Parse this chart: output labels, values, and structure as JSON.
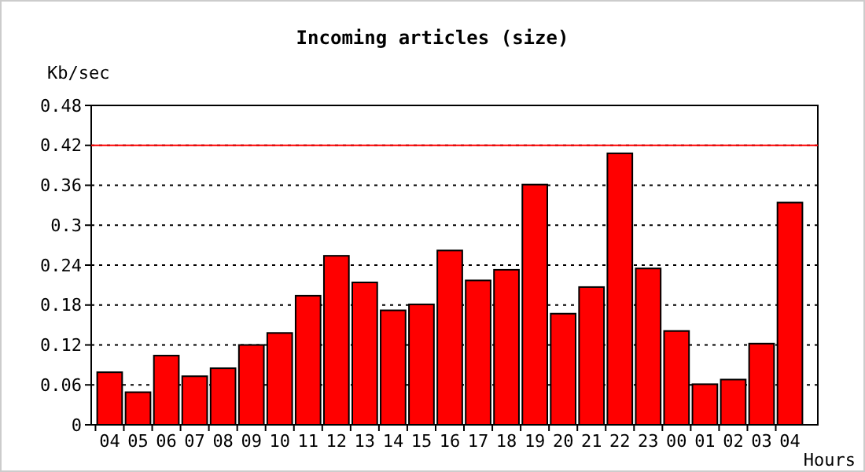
{
  "chart_data": {
    "type": "bar",
    "title": "Incoming articles (size)",
    "ylabel": "Kb/sec",
    "xlabel": "Hours",
    "categories": [
      "04",
      "05",
      "06",
      "07",
      "08",
      "09",
      "10",
      "11",
      "12",
      "13",
      "14",
      "15",
      "16",
      "17",
      "18",
      "19",
      "20",
      "21",
      "22",
      "23",
      "00",
      "01",
      "02",
      "03",
      "04"
    ],
    "values": [
      0.079,
      0.049,
      0.104,
      0.073,
      0.085,
      0.12,
      0.138,
      0.194,
      0.254,
      0.214,
      0.172,
      0.181,
      0.262,
      0.217,
      0.233,
      0.361,
      0.167,
      0.207,
      0.408,
      0.235,
      0.141,
      0.061,
      0.068,
      0.122,
      0.334
    ],
    "color": "#ff0000",
    "ylim": [
      0,
      0.48
    ],
    "yticks": [
      0,
      0.06,
      0.12,
      0.18,
      0.24,
      0.3,
      0.36,
      0.42,
      0.48
    ],
    "grid": "y",
    "ref_lines": [
      {
        "axis": "y",
        "value": 0.42,
        "color": "#ff0000",
        "line_style": "solid"
      }
    ]
  }
}
